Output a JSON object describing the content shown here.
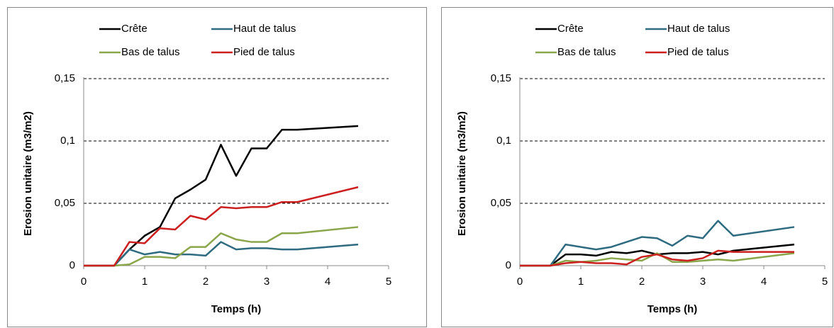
{
  "chart_data": [
    {
      "type": "line",
      "x_label": "Temps (h)",
      "y_label": "Erosion unitaire (m3/m2)",
      "x": [
        0,
        0.5,
        0.75,
        1,
        1.25,
        1.5,
        1.75,
        2,
        2.25,
        2.5,
        2.75,
        3,
        3.25,
        3.5,
        4.5
      ],
      "series": [
        {
          "name": "Crête",
          "color": "#000000",
          "values": [
            0,
            0,
            0.013,
            0.024,
            0.031,
            0.054,
            0.061,
            0.069,
            0.097,
            0.072,
            0.094,
            0.094,
            0.109,
            0.109,
            0.112
          ]
        },
        {
          "name": "Haut de talus",
          "color": "#2f6b80",
          "values": [
            0,
            0,
            0.013,
            0.009,
            0.011,
            0.009,
            0.009,
            0.008,
            0.019,
            0.013,
            0.014,
            0.014,
            0.013,
            0.013,
            0.017
          ]
        },
        {
          "name": "Bas de talus",
          "color": "#8aa64a",
          "values": [
            0,
            0,
            0.001,
            0.007,
            0.007,
            0.006,
            0.015,
            0.015,
            0.026,
            0.021,
            0.019,
            0.019,
            0.026,
            0.026,
            0.031
          ]
        },
        {
          "name": "Pied de talus",
          "color": "#cc1f1f",
          "values": [
            0,
            0,
            0.019,
            0.018,
            0.03,
            0.029,
            0.04,
            0.037,
            0.047,
            0.046,
            0.047,
            0.047,
            0.051,
            0.051,
            0.063
          ]
        }
      ],
      "xlim": [
        0,
        5
      ],
      "xticks": [
        0,
        1,
        2,
        3,
        4,
        5
      ],
      "ylim": [
        0,
        0.15
      ],
      "yticks": [
        0,
        {
          "value": 0.05,
          "label": "0,05"
        },
        {
          "value": 0.1,
          "label": "0,1"
        },
        {
          "value": 0.15,
          "label": "0,15"
        }
      ],
      "grid": true
    },
    {
      "type": "line",
      "x_label": "Temps (h)",
      "y_label": "Erosion unitaire (m3/m2)",
      "x": [
        0,
        0.5,
        0.75,
        1,
        1.25,
        1.5,
        1.75,
        2,
        2.25,
        2.5,
        2.75,
        3,
        3.25,
        3.5,
        4.5
      ],
      "series": [
        {
          "name": "Crête",
          "color": "#000000",
          "values": [
            0,
            0,
            0.009,
            0.009,
            0.008,
            0.011,
            0.01,
            0.012,
            0.009,
            0.01,
            0.01,
            0.011,
            0.009,
            0.012,
            0.017
          ]
        },
        {
          "name": "Haut de talus",
          "color": "#2f6b80",
          "values": [
            0,
            0,
            0.017,
            0.015,
            0.013,
            0.015,
            0.019,
            0.023,
            0.022,
            0.016,
            0.024,
            0.022,
            0.036,
            0.024,
            0.031
          ]
        },
        {
          "name": "Bas de talus",
          "color": "#8aa64a",
          "values": [
            0,
            0,
            0.004,
            0.003,
            0.004,
            0.006,
            0.005,
            0.004,
            0.01,
            0.003,
            0.003,
            0.004,
            0.005,
            0.004,
            0.01
          ]
        },
        {
          "name": "Pied de talus",
          "color": "#cc1f1f",
          "values": [
            0,
            0,
            0.002,
            0.003,
            0.002,
            0.002,
            0.001,
            0.007,
            0.009,
            0.005,
            0.004,
            0.006,
            0.012,
            0.011,
            0.011
          ]
        }
      ],
      "xlim": [
        0,
        5
      ],
      "xticks": [
        0,
        1,
        2,
        3,
        4,
        5
      ],
      "ylim": [
        0,
        0.15
      ],
      "yticks": [
        0,
        {
          "value": 0.05,
          "label": "0,05"
        },
        {
          "value": 0.1,
          "label": "0,1"
        },
        {
          "value": 0.15,
          "label": "0,15"
        }
      ],
      "grid": true
    }
  ]
}
